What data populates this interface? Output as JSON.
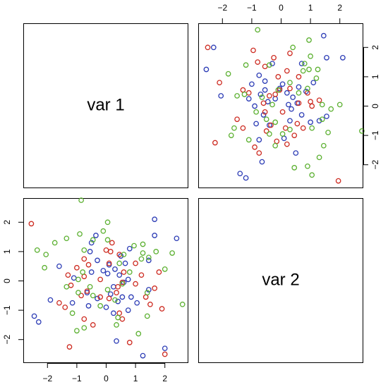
{
  "chart_data": {
    "type": "scatter",
    "kind": "scatterplot-matrix",
    "variables": [
      "var 1",
      "var 2"
    ],
    "axis_range": [
      -2.8,
      2.8
    ],
    "ticks": [
      -2,
      -1,
      0,
      1,
      2
    ],
    "tick_labels": [
      "−2",
      "−1",
      "0",
      "1",
      "2"
    ],
    "grid": false,
    "legend": "none",
    "marker": "open-circle",
    "colors": [
      "#2B3BB5",
      "#CD2A20",
      "#5BB030"
    ],
    "series": [
      {
        "color": "#2B3BB5",
        "points": [
          [
            -2.3,
            2.0
          ],
          [
            2.1,
            1.65
          ],
          [
            -2.55,
            1.25
          ],
          [
            -2.05,
            0.35
          ],
          [
            1.55,
            1.65
          ],
          [
            1.45,
            2.4
          ],
          [
            -0.75,
            1.05
          ],
          [
            -1.0,
            0.75
          ],
          [
            -0.55,
            0.55
          ],
          [
            0.2,
            0.45
          ],
          [
            -0.05,
            0.6
          ],
          [
            0.6,
            0.65
          ],
          [
            -0.9,
            0.0
          ],
          [
            -0.45,
            0.15
          ],
          [
            0.25,
            0.05
          ],
          [
            0.35,
            -0.1
          ],
          [
            -0.6,
            -0.3
          ],
          [
            0.3,
            -0.5
          ],
          [
            0.55,
            0.1
          ],
          [
            1.3,
            -0.5
          ],
          [
            1.0,
            -0.55
          ],
          [
            -1.4,
            -2.3
          ],
          [
            -1.2,
            -2.45
          ],
          [
            -0.75,
            -1.15
          ],
          [
            -0.65,
            -1.9
          ],
          [
            0.5,
            -1.6
          ],
          [
            1.55,
            -0.35
          ],
          [
            -0.3,
            1.45
          ],
          [
            0.7,
            -0.3
          ],
          [
            -0.2,
            0.25
          ],
          [
            0.05,
            0.75
          ],
          [
            -0.7,
            0.4
          ],
          [
            0.85,
            0.5
          ],
          [
            -0.4,
            -0.65
          ],
          [
            0.1,
            -1.1
          ],
          [
            0.4,
            0.3
          ],
          [
            -0.85,
            -0.6
          ],
          [
            0.7,
            1.45
          ],
          [
            -0.55,
            0.85
          ],
          [
            1.1,
            0.8
          ],
          [
            -1.1,
            0.25
          ]
        ]
      },
      {
        "color": "#CD2A20",
        "points": [
          [
            -2.5,
            2.0
          ],
          [
            -0.95,
            1.9
          ],
          [
            -0.25,
            1.65
          ],
          [
            0.3,
            1.8
          ],
          [
            -0.8,
            1.5
          ],
          [
            -2.1,
            0.8
          ],
          [
            -0.55,
            1.35
          ],
          [
            0.2,
            1.2
          ],
          [
            -0.1,
            1.0
          ],
          [
            0.6,
            1.0
          ],
          [
            -1.3,
            0.55
          ],
          [
            -1.1,
            0.45
          ],
          [
            -0.6,
            0.1
          ],
          [
            0.05,
            -0.2
          ],
          [
            0.6,
            0.1
          ],
          [
            1.0,
            0.15
          ],
          [
            1.05,
            0.0
          ],
          [
            -1.5,
            -0.45
          ],
          [
            -1.3,
            -0.75
          ],
          [
            -0.35,
            -0.65
          ],
          [
            0.55,
            -0.6
          ],
          [
            -0.9,
            -1.4
          ],
          [
            -0.75,
            -1.6
          ],
          [
            0.45,
            -1.0
          ],
          [
            -2.25,
            -1.25
          ],
          [
            -0.15,
            -1.2
          ],
          [
            1.95,
            -2.55
          ],
          [
            0.2,
            -1.3
          ],
          [
            -0.5,
            -0.85
          ],
          [
            0.9,
            0.45
          ],
          [
            -0.2,
            0.4
          ],
          [
            0.3,
            0.6
          ],
          [
            -0.55,
            -0.2
          ],
          [
            0.15,
            -0.75
          ],
          [
            -0.05,
            0.55
          ],
          [
            0.75,
            -0.75
          ],
          [
            -0.4,
            0.35
          ],
          [
            1.3,
            0.2
          ]
        ]
      },
      {
        "color": "#5BB030",
        "points": [
          [
            0.95,
            2.25
          ],
          [
            -0.8,
            2.6
          ],
          [
            0.4,
            2.0
          ],
          [
            1.0,
            1.7
          ],
          [
            0.8,
            1.45
          ],
          [
            -1.2,
            1.4
          ],
          [
            -1.8,
            1.1
          ],
          [
            -0.4,
            1.4
          ],
          [
            1.25,
            1.25
          ],
          [
            0.75,
            1.2
          ],
          [
            1.2,
            0.95
          ],
          [
            0.3,
            0.8
          ],
          [
            -1.25,
            0.4
          ],
          [
            -0.1,
            0.55
          ],
          [
            0.9,
            0.6
          ],
          [
            1.4,
            0.05
          ],
          [
            1.7,
            -0.1
          ],
          [
            2.0,
            0.05
          ],
          [
            2.75,
            -0.85
          ],
          [
            1.4,
            -0.45
          ],
          [
            -1.6,
            -0.75
          ],
          [
            -1.7,
            -1.0
          ],
          [
            -1.1,
            -1.15
          ],
          [
            -0.4,
            -0.95
          ],
          [
            0.3,
            -0.8
          ],
          [
            1.05,
            -0.75
          ],
          [
            -0.2,
            -1.35
          ],
          [
            1.45,
            -1.35
          ],
          [
            1.3,
            -1.75
          ],
          [
            0.9,
            -2.05
          ],
          [
            1.05,
            -2.35
          ],
          [
            0.45,
            -2.1
          ],
          [
            -0.2,
            -0.55
          ],
          [
            -0.85,
            -0.2
          ],
          [
            0.05,
            -0.95
          ],
          [
            0.6,
            0.45
          ],
          [
            -0.5,
            -0.45
          ],
          [
            0.95,
            1.25
          ],
          [
            1.6,
            -0.9
          ],
          [
            -0.65,
            0.3
          ],
          [
            -0.3,
            0.05
          ],
          [
            -1.5,
            0.35
          ]
        ]
      }
    ]
  }
}
